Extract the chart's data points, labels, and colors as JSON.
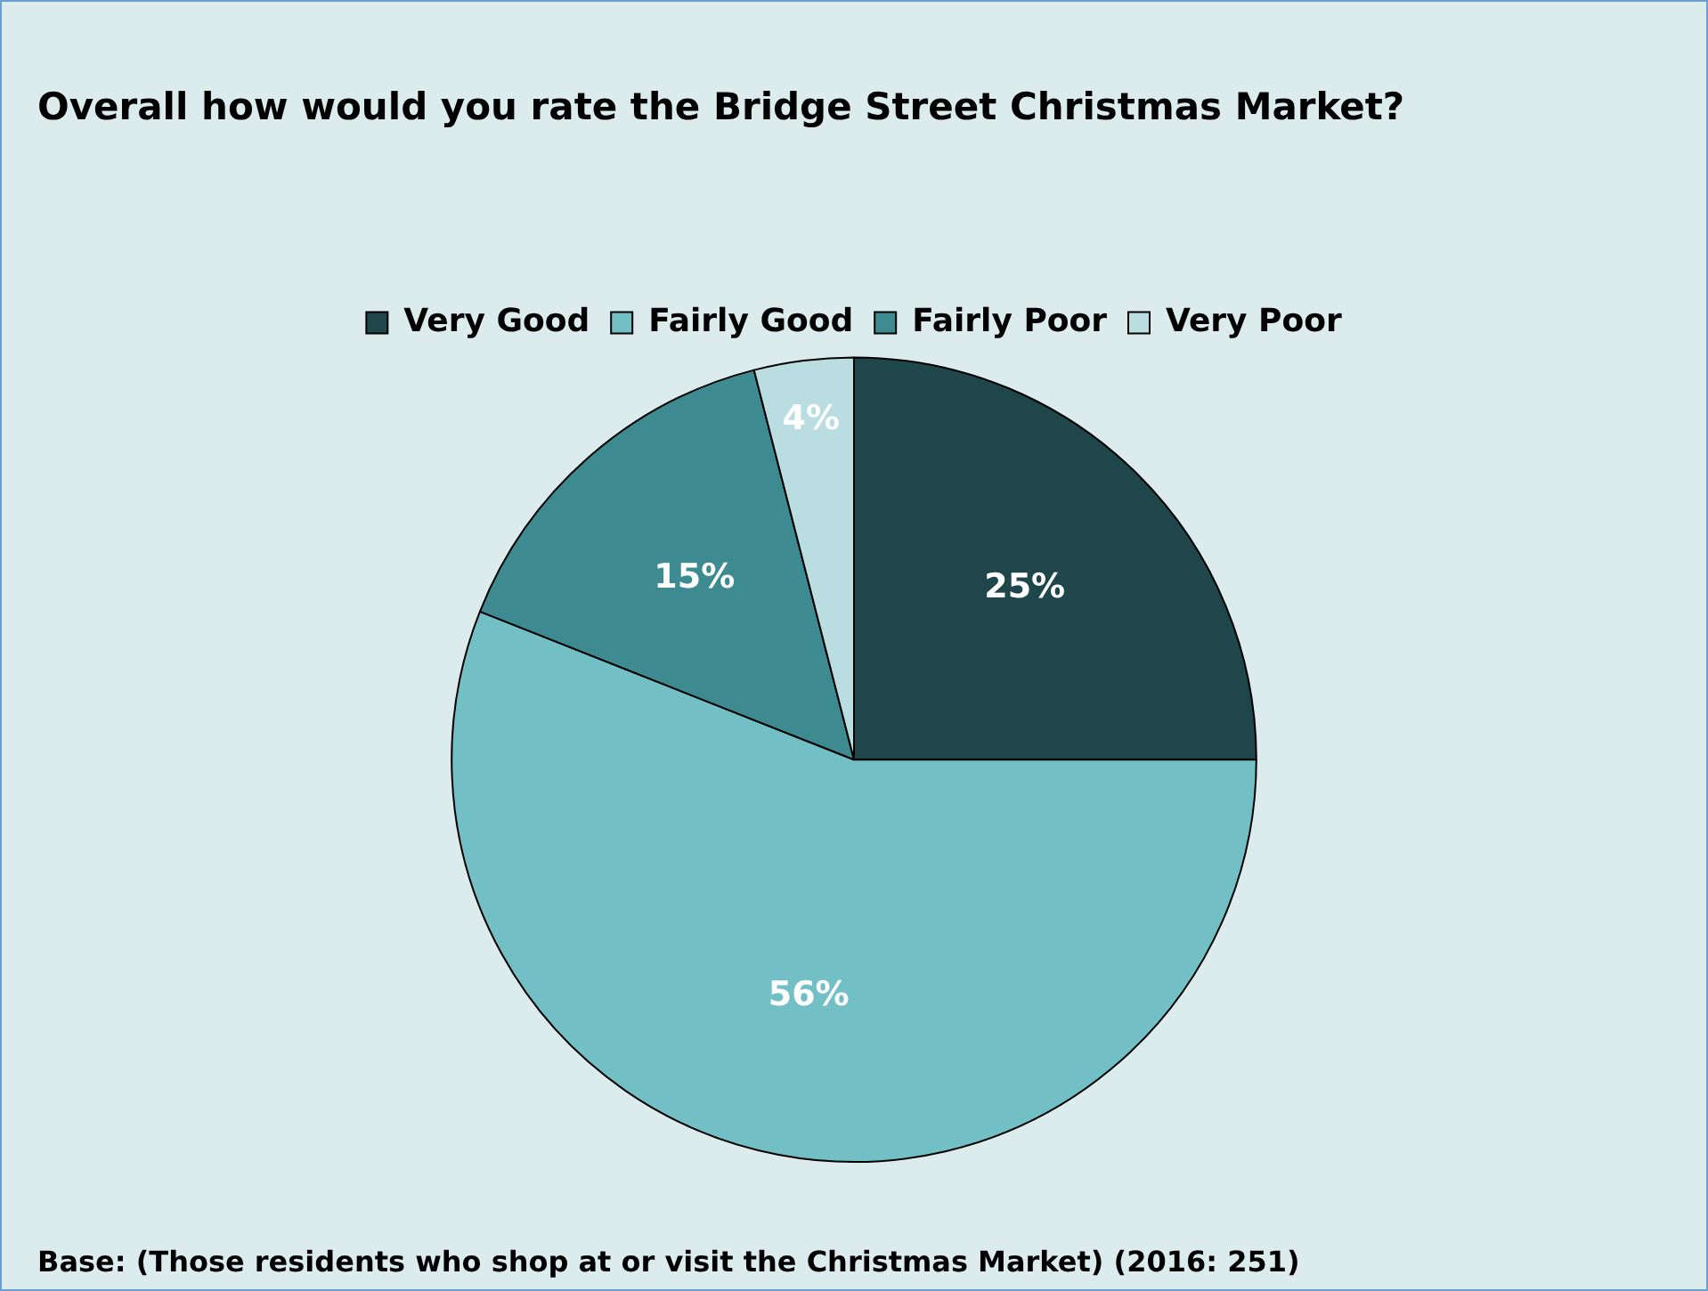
{
  "chart_data": {
    "type": "pie",
    "title": "Overall how would you rate the Bridge Street Christmas Market?",
    "categories": [
      "Very Good",
      "Fairly Good",
      "Fairly Poor",
      "Very Poor"
    ],
    "values": [
      25,
      56,
      15,
      4
    ],
    "colors": [
      "#1f474b",
      "#73bfc6",
      "#3d8a91",
      "#b9dde0"
    ],
    "value_labels": [
      "25%",
      "56%",
      "15%",
      "4%"
    ],
    "legend": "top",
    "annotations": [
      "Base: (Those residents who shop at or visit the Christmas Market) (2016: 251)"
    ]
  }
}
